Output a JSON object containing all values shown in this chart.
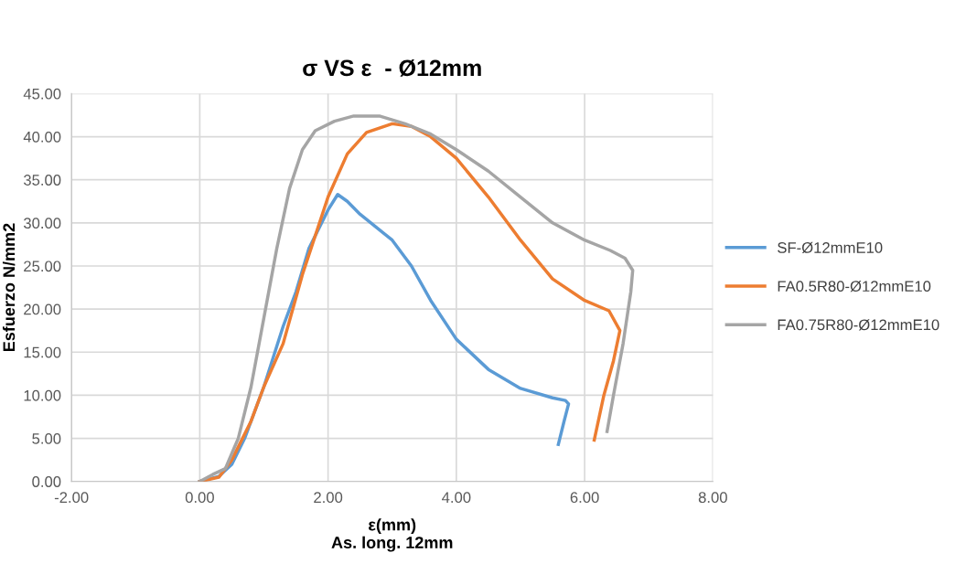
{
  "chart_data": {
    "type": "line",
    "title": "σ VS ε  - Ø12mm",
    "xlabel": "ε(mm)\nAs. long. 12mm",
    "ylabel": "Esfuerzo N/mm2",
    "xlim": [
      -2,
      8
    ],
    "ylim": [
      0,
      45
    ],
    "xticks": [
      {
        "value": -2,
        "label": "-2.00"
      },
      {
        "value": 0,
        "label": "0.00"
      },
      {
        "value": 2,
        "label": "2.00"
      },
      {
        "value": 4,
        "label": "4.00"
      },
      {
        "value": 6,
        "label": "6.00"
      },
      {
        "value": 8,
        "label": "8.00"
      }
    ],
    "yticks": [
      {
        "value": 0,
        "label": "0.00"
      },
      {
        "value": 5,
        "label": "5.00"
      },
      {
        "value": 10,
        "label": "10.00"
      },
      {
        "value": 15,
        "label": "15.00"
      },
      {
        "value": 20,
        "label": "20.00"
      },
      {
        "value": 25,
        "label": "25.00"
      },
      {
        "value": 30,
        "label": "30.00"
      },
      {
        "value": 35,
        "label": "35.00"
      },
      {
        "value": 40,
        "label": "40.00"
      },
      {
        "value": 45,
        "label": "45.00"
      }
    ],
    "grid": true,
    "legend": "right",
    "marker": "none",
    "line_style": "solid",
    "series": [
      {
        "name": "SF-Ø12mmE10",
        "color": "#5b9bd5",
        "x": [
          0,
          0.3,
          0.5,
          0.7,
          1.0,
          1.3,
          1.5,
          1.7,
          2.0,
          2.15,
          2.3,
          2.5,
          3.0,
          3.3,
          3.6,
          4.0,
          4.5,
          5.0,
          5.5,
          5.7,
          5.75,
          5.68,
          5.59
        ],
        "values": [
          0,
          0.6,
          2,
          5,
          11,
          18,
          22,
          27,
          31.5,
          33.3,
          32.5,
          31,
          28,
          25,
          21,
          16.5,
          13,
          10.8,
          9.7,
          9.4,
          9.0,
          7.0,
          4.3
        ]
      },
      {
        "name": "FA0.5R80-Ø12mmE10",
        "color": "#ed7d31",
        "x": [
          0,
          0.3,
          0.5,
          0.8,
          1.0,
          1.3,
          1.6,
          2.0,
          2.3,
          2.6,
          3.0,
          3.3,
          3.6,
          4.0,
          4.5,
          5.0,
          5.5,
          6.0,
          6.38,
          6.55,
          6.45,
          6.3,
          6.15
        ],
        "values": [
          0,
          0.5,
          2.5,
          7,
          11,
          16,
          24,
          33,
          38,
          40.5,
          41.5,
          41.2,
          40,
          37.5,
          33,
          28,
          23.5,
          21,
          19.8,
          17.5,
          14,
          10,
          4.8
        ]
      },
      {
        "name": "FA0.75R80-Ø12mmE10",
        "color": "#a5a5a5",
        "x": [
          0,
          0.2,
          0.4,
          0.6,
          0.8,
          1.0,
          1.2,
          1.4,
          1.6,
          1.8,
          2.1,
          2.4,
          2.8,
          3.2,
          3.6,
          4.0,
          4.5,
          5.0,
          5.5,
          6.0,
          6.4,
          6.63,
          6.75,
          6.72,
          6.6,
          6.45,
          6.35
        ],
        "values": [
          0,
          0.8,
          1.5,
          5,
          11,
          19,
          27,
          34,
          38.5,
          40.7,
          41.8,
          42.4,
          42.4,
          41.5,
          40.3,
          38.5,
          36,
          33,
          30,
          28,
          26.8,
          25.9,
          24.5,
          22,
          16,
          10,
          5.8
        ]
      }
    ]
  }
}
